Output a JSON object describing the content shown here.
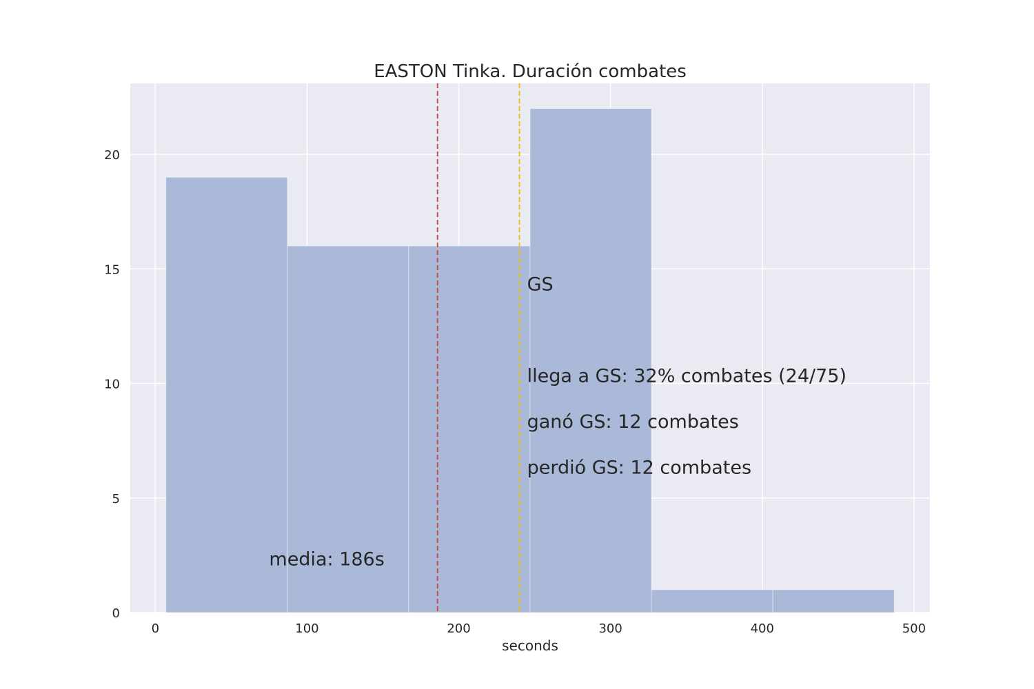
{
  "chart_data": {
    "type": "bar",
    "title": "EASTON Tinka. Duración combates",
    "xlabel": "seconds",
    "ylabel": "",
    "xlim": [
      -16.5,
      510.5
    ],
    "ylim": [
      0,
      23.1
    ],
    "xticks": [
      0,
      100,
      200,
      300,
      400,
      500
    ],
    "yticks": [
      0,
      5,
      10,
      15,
      20
    ],
    "grid": true,
    "bins": [
      {
        "x0": 7,
        "x1": 87,
        "count": 19
      },
      {
        "x0": 87,
        "x1": 167,
        "count": 16
      },
      {
        "x0": 167,
        "x1": 247,
        "count": 16
      },
      {
        "x0": 247,
        "x1": 327,
        "count": 22
      },
      {
        "x0": 327,
        "x1": 407,
        "count": 1
      },
      {
        "x0": 407,
        "x1": 487,
        "count": 1
      }
    ],
    "vlines": [
      {
        "x": 186,
        "color": "#c44e52",
        "style": "dashed"
      },
      {
        "x": 240,
        "color": "#e6c21a",
        "style": "dashed"
      }
    ],
    "annotations": [
      {
        "text": "media: 186s",
        "x": 75,
        "y": 2,
        "color": "#c44e52"
      },
      {
        "text": "GS",
        "x": 245,
        "y": 14,
        "color": "#262626"
      },
      {
        "text": "llega a GS: 32% combates (24/75)",
        "x": 245,
        "y": 10,
        "color": "#262626"
      },
      {
        "text": "ganó GS: 12 combates",
        "x": 245,
        "y": 8,
        "color": "#262626"
      },
      {
        "text": "perdió GS: 12 combates",
        "x": 245,
        "y": 6,
        "color": "#262626"
      }
    ],
    "colors": {
      "bar": "#a9b9d7",
      "plot_bg": "#eaeaf2",
      "grid": "#ffffff"
    }
  }
}
